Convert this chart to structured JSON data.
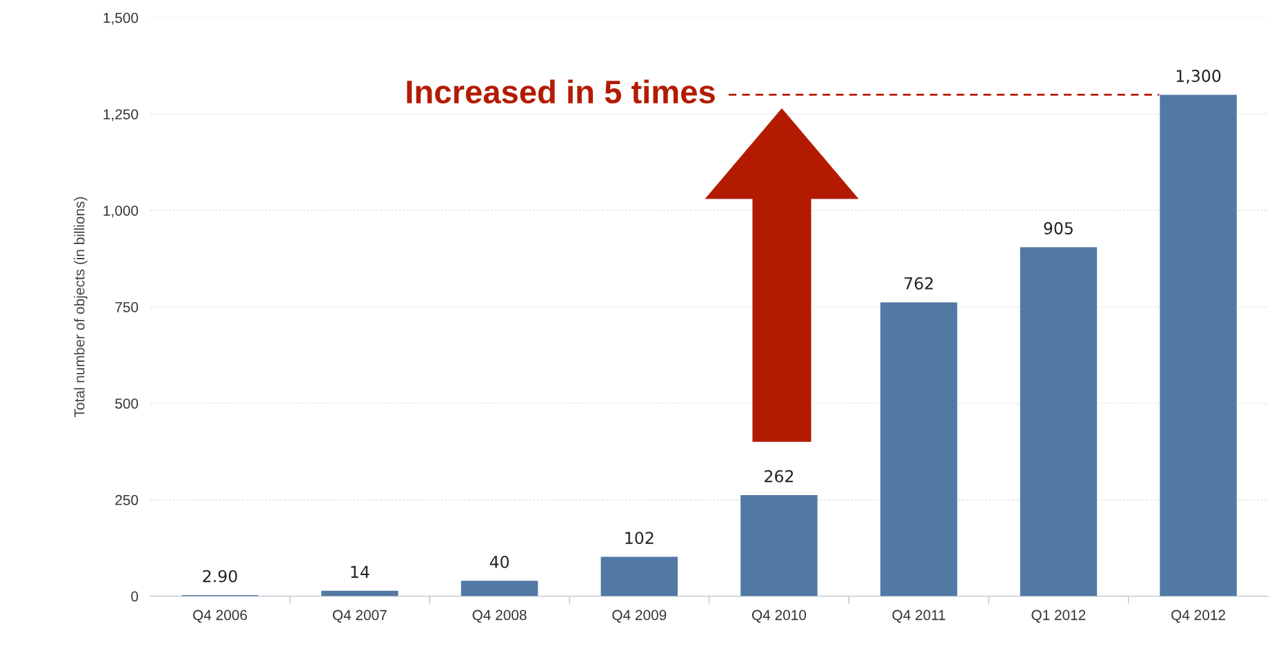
{
  "chart_data": {
    "type": "bar",
    "ylabel": "Total number of objects (in billions)",
    "categories": [
      "Q4 2006",
      "Q4 2007",
      "Q4 2008",
      "Q4 2009",
      "Q4 2010",
      "Q4 2011",
      "Q1 2012",
      "Q4 2012"
    ],
    "values": [
      2.9,
      14,
      40,
      102,
      262,
      762,
      905,
      1300
    ],
    "value_labels": [
      "2.90",
      "14",
      "40",
      "102",
      "262",
      "762",
      "905",
      "1,300"
    ],
    "color": "#5279a4",
    "ylim": [
      0,
      1500
    ],
    "yticks": [
      0,
      250,
      500,
      750,
      {
        "value": 1000,
        "label": "1,000"
      },
      {
        "value": 1250,
        "label": "1,250"
      },
      {
        "value": 1500,
        "label": "1,500"
      }
    ],
    "grid": "y",
    "ref_lines": [
      {
        "axis": "y",
        "value": 1300,
        "label": "Increased in 5 times",
        "color": "#b31b00",
        "line_style": "dashed"
      }
    ]
  }
}
